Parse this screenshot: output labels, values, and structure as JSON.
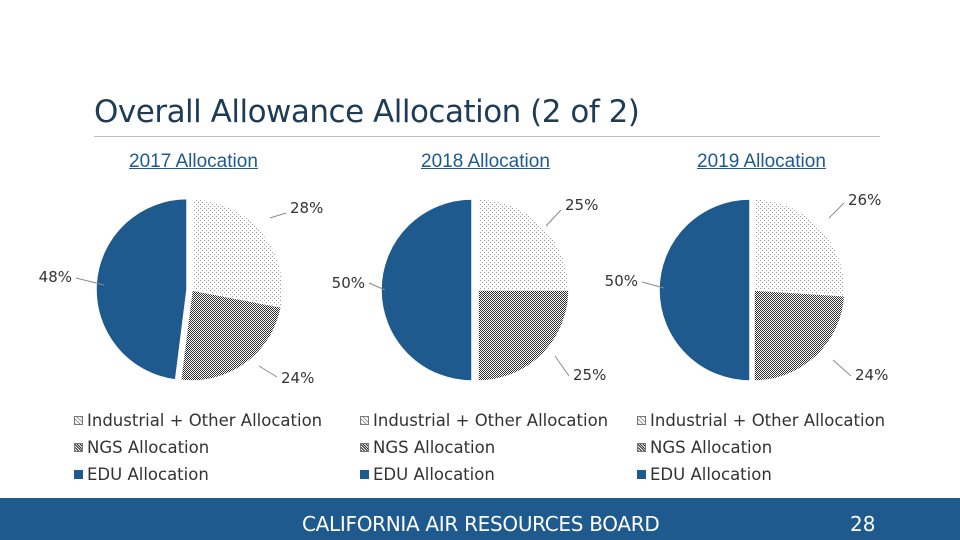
{
  "slide": {
    "title": "Overall Allowance Allocation (2 of 2)",
    "footer": "CALIFORNIA AIR RESOURCES BOARD",
    "page_number": "28"
  },
  "colors": {
    "industrial_bg": "#ffffff",
    "industrial_dot": "#9a9a9a",
    "ngs_bg": "#ffffff",
    "ngs_dot": "#2e2e2e",
    "edu": "#1f5a8f",
    "footer": "#1f5a8f"
  },
  "chart_data": [
    {
      "type": "pie",
      "title": "2017 Allocation",
      "categories": [
        "Industrial + Other Allocation",
        "NGS Allocation",
        "EDU Allocation"
      ],
      "values": [
        28,
        24,
        48
      ],
      "labels": [
        "28%",
        "24%",
        "48%"
      ],
      "legend": "bottom"
    },
    {
      "type": "pie",
      "title": "2018 Allocation",
      "categories": [
        "Industrial + Other Allocation",
        "NGS Allocation",
        "EDU Allocation"
      ],
      "values": [
        25,
        25,
        50
      ],
      "labels": [
        "25%",
        "25%",
        "50%"
      ],
      "legend": "bottom"
    },
    {
      "type": "pie",
      "title": "2019 Allocation",
      "categories": [
        "Industrial + Other Allocation",
        "NGS Allocation",
        "EDU Allocation"
      ],
      "values": [
        26,
        24,
        50
      ],
      "labels": [
        "26%",
        "24%",
        "50%"
      ],
      "legend": "bottom"
    }
  ]
}
